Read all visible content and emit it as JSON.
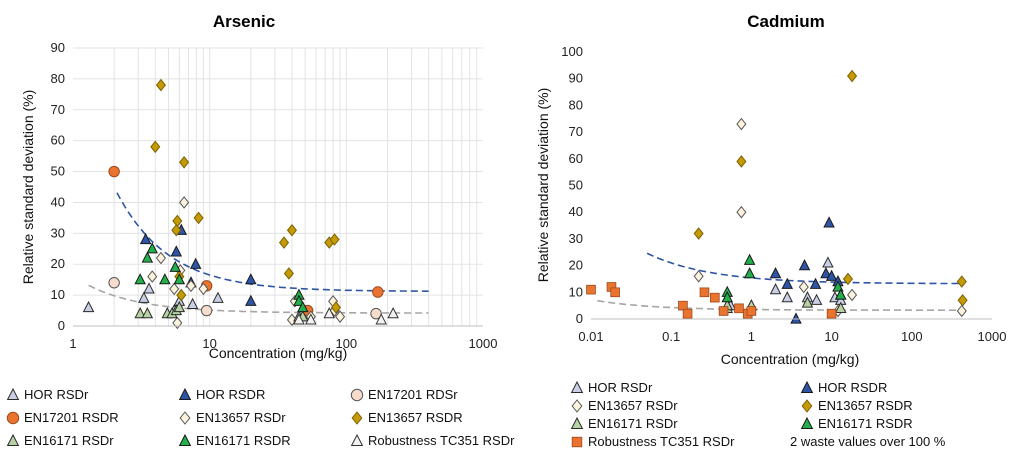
{
  "chart_data": [
    {
      "type": "scatter",
      "title": "Arsenic",
      "xlabel": "Concentration (mg/kg)",
      "ylabel": "Relative standard deviation (%)",
      "x_scale": "log",
      "xlim": [
        1,
        1000
      ],
      "ylim": [
        0,
        90
      ],
      "x_ticks": [
        "1",
        "10",
        "100",
        "1000"
      ],
      "y_ticks": [
        "0",
        "10",
        "20",
        "30",
        "40",
        "50",
        "60",
        "70",
        "80",
        "90"
      ],
      "grid": true,
      "legend_position": "bottom",
      "series": [
        {
          "name": "HOR RSDr",
          "marker": "triangle",
          "fill": "#c9d0e6",
          "stroke": "#2a2a2a",
          "points": [
            [
              1.3,
              6
            ],
            [
              3.3,
              9
            ],
            [
              3.6,
              12
            ],
            [
              5.5,
              5
            ],
            [
              6,
              8
            ],
            [
              7.5,
              7
            ],
            [
              11.5,
              9
            ]
          ]
        },
        {
          "name": "HOR RSDR",
          "marker": "triangle",
          "fill": "#2e55a5",
          "stroke": "#1a1a1a",
          "points": [
            [
              3.4,
              28
            ],
            [
              5.7,
              24
            ],
            [
              6.2,
              31
            ],
            [
              7.3,
              14
            ],
            [
              7.9,
              20
            ],
            [
              20,
              15
            ],
            [
              20,
              8
            ]
          ]
        },
        {
          "name": "EN17201 RDSr",
          "marker": "circle",
          "fill": "#f6dccd",
          "stroke": "#555",
          "points": [
            [
              2.0,
              14
            ],
            [
              9.5,
              5
            ],
            [
              52,
              5
            ],
            [
              165,
              4
            ]
          ]
        },
        {
          "name": "EN17201 RSDR",
          "marker": "circle",
          "fill": "#e8742f",
          "stroke": "#a0481c",
          "points": [
            [
              2.0,
              50
            ],
            [
              9.5,
              13
            ],
            [
              52,
              5
            ],
            [
              170,
              11
            ]
          ]
        },
        {
          "name": "EN13657 RSDr",
          "marker": "diamond",
          "fill": "#fcf3dc",
          "stroke": "#555",
          "points": [
            [
              4.4,
              22
            ],
            [
              3.8,
              16
            ],
            [
              5.5,
              12
            ],
            [
              5.8,
              1
            ],
            [
              6.5,
              40
            ],
            [
              6.1,
              18
            ],
            [
              7.3,
              13
            ],
            [
              9,
              12
            ],
            [
              40,
              2
            ],
            [
              42,
              8
            ],
            [
              55,
              3
            ],
            [
              80,
              8
            ],
            [
              82,
              5
            ],
            [
              90,
              3
            ]
          ]
        },
        {
          "name": "EN13657 RSDR",
          "marker": "diamond",
          "fill": "#c49a06",
          "stroke": "#7a6004",
          "points": [
            [
              4.4,
              78
            ],
            [
              4.0,
              58
            ],
            [
              6.5,
              53
            ],
            [
              5.8,
              34
            ],
            [
              5.7,
              31
            ],
            [
              8.3,
              35
            ],
            [
              6.0,
              16
            ],
            [
              6.2,
              10
            ],
            [
              35,
              27
            ],
            [
              40,
              31
            ],
            [
              38,
              17
            ],
            [
              75,
              27
            ],
            [
              82,
              28
            ],
            [
              84,
              6
            ]
          ]
        },
        {
          "name": "EN16171 RSDr",
          "marker": "triangle",
          "fill": "#b7d3a3",
          "stroke": "#2a2a2a",
          "points": [
            [
              3.1,
              4
            ],
            [
              3.5,
              4
            ],
            [
              4.9,
              4
            ],
            [
              5.3,
              4
            ],
            [
              5.7,
              5
            ],
            [
              6,
              6
            ],
            [
              45,
              3
            ],
            [
              48,
              3
            ]
          ]
        },
        {
          "name": "EN16171 RSDR",
          "marker": "triangle",
          "fill": "#22b04b",
          "stroke": "#1a1a1a",
          "points": [
            [
              3.1,
              15
            ],
            [
              3.5,
              22
            ],
            [
              3.8,
              25
            ],
            [
              4.7,
              15
            ],
            [
              5.6,
              19
            ],
            [
              6,
              15
            ],
            [
              45,
              10
            ],
            [
              45,
              8
            ],
            [
              48,
              6
            ]
          ]
        },
        {
          "name": "Robustness TC351 RSDr",
          "marker": "triangle",
          "fill": "#f2f2f2",
          "stroke": "#333",
          "points": [
            [
              45,
              2
            ],
            [
              55,
              2
            ],
            [
              75,
              4
            ],
            [
              180,
              2
            ],
            [
              220,
              4
            ]
          ]
        }
      ],
      "trendlines": [
        {
          "color": "#2e55a5",
          "x_start": 2.1,
          "x_end": 400,
          "a": 11.2,
          "b": 75,
          "k": 1.15
        },
        {
          "color": "#a6a6a6",
          "x_start": 1.3,
          "x_end": 400,
          "a": 4.2,
          "b": 12,
          "k": 1.1
        }
      ]
    },
    {
      "type": "scatter",
      "title": "Cadmium",
      "xlabel": "Concentration (mg/kg)",
      "ylabel": "Relative standard deviation (%)",
      "x_scale": "log",
      "xlim": [
        0.01,
        1000
      ],
      "ylim": [
        0,
        100
      ],
      "x_ticks": [
        "0.01",
        "0.1",
        "1",
        "10",
        "100",
        "1000"
      ],
      "y_ticks": [
        "0",
        "10",
        "20",
        "30",
        "40",
        "50",
        "60",
        "70",
        "80",
        "90",
        "100"
      ],
      "grid": false,
      "legend_position": "bottom",
      "series": [
        {
          "name": "HOR RSDr",
          "marker": "triangle",
          "fill": "#c9d0e6",
          "stroke": "#2a2a2a",
          "points": [
            [
              0.55,
              5
            ],
            [
              2.0,
              11
            ],
            [
              2.8,
              8
            ],
            [
              5.0,
              8
            ],
            [
              6.5,
              7
            ],
            [
              9.0,
              21
            ],
            [
              11,
              8
            ],
            [
              13,
              7
            ]
          ]
        },
        {
          "name": "HOR RSDR",
          "marker": "triangle",
          "fill": "#2e55a5",
          "stroke": "#1a1a1a",
          "points": [
            [
              2.0,
              17
            ],
            [
              2.8,
              13
            ],
            [
              3.6,
              0
            ],
            [
              4.6,
              20
            ],
            [
              6.3,
              13
            ],
            [
              8.5,
              17
            ],
            [
              9.3,
              36
            ],
            [
              10,
              16
            ],
            [
              12,
              14
            ],
            [
              13,
              9
            ]
          ]
        },
        {
          "name": "EN13657 RSDr",
          "marker": "diamond",
          "fill": "#fcf3dc",
          "stroke": "#555",
          "points": [
            [
              0.22,
              16
            ],
            [
              0.75,
              73
            ],
            [
              0.75,
              40
            ],
            [
              4.5,
              12
            ],
            [
              12,
              3
            ],
            [
              18,
              9
            ],
            [
              420,
              3
            ]
          ]
        },
        {
          "name": "EN13657 RSDR",
          "marker": "diamond",
          "fill": "#c49a06",
          "stroke": "#7a6004",
          "points": [
            [
              0.22,
              32
            ],
            [
              0.75,
              59
            ],
            [
              18,
              91
            ],
            [
              16,
              15
            ],
            [
              420,
              14
            ],
            [
              430,
              7
            ]
          ]
        },
        {
          "name": "EN16171 RSDr",
          "marker": "triangle",
          "fill": "#b7d3a3",
          "stroke": "#2a2a2a",
          "points": [
            [
              0.5,
              4
            ],
            [
              0.5,
              5
            ],
            [
              1.0,
              5
            ],
            [
              5,
              6
            ],
            [
              13,
              4
            ]
          ]
        },
        {
          "name": "EN16171 RSDR",
          "marker": "triangle",
          "fill": "#22b04b",
          "stroke": "#1a1a1a",
          "points": [
            [
              0.5,
              10
            ],
            [
              0.5,
              8
            ],
            [
              0.95,
              17
            ],
            [
              0.95,
              22
            ],
            [
              12,
              12
            ],
            [
              13,
              9
            ]
          ]
        },
        {
          "name": "Robustness TC351 RSDr",
          "marker": "square",
          "fill": "#e8742f",
          "stroke": "#a0481c",
          "points": [
            [
              0.01,
              11
            ],
            [
              0.018,
              12
            ],
            [
              0.02,
              10
            ],
            [
              0.14,
              5
            ],
            [
              0.16,
              2
            ],
            [
              0.26,
              10
            ],
            [
              0.35,
              8
            ],
            [
              0.45,
              3
            ],
            [
              0.7,
              4
            ],
            [
              0.9,
              2
            ],
            [
              1.0,
              3
            ],
            [
              10,
              2
            ]
          ]
        }
      ],
      "trendlines": [
        {
          "color": "#2e55a5",
          "x_start": 0.05,
          "x_end": 450,
          "a": 13.2,
          "b": 2.2,
          "k": 0.55
        },
        {
          "color": "#a6a6a6",
          "x_start": 0.012,
          "x_end": 450,
          "a": 3.3,
          "b": 0.25,
          "k": 0.6
        }
      ],
      "note": "2 waste values over 100 %"
    }
  ],
  "legends": {
    "arsenic": [
      {
        "label": "HOR RSDr",
        "marker": "triangle",
        "fill": "#c9d0e6",
        "stroke": "#2a2a2a"
      },
      {
        "label": "HOR RSDR",
        "marker": "triangle",
        "fill": "#2e55a5",
        "stroke": "#1a1a1a"
      },
      {
        "label": "EN17201 RDSr",
        "marker": "circle",
        "fill": "#f6dccd",
        "stroke": "#555"
      },
      {
        "label": "EN17201 RSDR",
        "marker": "circle",
        "fill": "#e8742f",
        "stroke": "#a0481c"
      },
      {
        "label": "EN13657 RSDr",
        "marker": "diamond",
        "fill": "#fcf3dc",
        "stroke": "#555"
      },
      {
        "label": "EN13657 RSDR",
        "marker": "diamond",
        "fill": "#c49a06",
        "stroke": "#7a6004"
      },
      {
        "label": "EN16171 RSDr",
        "marker": "triangle",
        "fill": "#b7d3a3",
        "stroke": "#2a2a2a"
      },
      {
        "label": "EN16171 RSDR",
        "marker": "triangle",
        "fill": "#22b04b",
        "stroke": "#1a1a1a"
      },
      {
        "label": "Robustness TC351 RSDr",
        "marker": "triangle",
        "fill": "#f2f2f2",
        "stroke": "#333"
      }
    ],
    "cadmium": [
      {
        "label": "HOR RSDr",
        "marker": "triangle",
        "fill": "#c9d0e6",
        "stroke": "#2a2a2a"
      },
      {
        "label": "HOR RSDR",
        "marker": "triangle",
        "fill": "#2e55a5",
        "stroke": "#1a1a1a"
      },
      {
        "label": "EN13657 RSDr",
        "marker": "diamond",
        "fill": "#fcf3dc",
        "stroke": "#555"
      },
      {
        "label": "EN13657 RSDR",
        "marker": "diamond",
        "fill": "#c49a06",
        "stroke": "#7a6004"
      },
      {
        "label": "EN16171 RSDr",
        "marker": "triangle",
        "fill": "#b7d3a3",
        "stroke": "#2a2a2a"
      },
      {
        "label": "EN16171 RSDR",
        "marker": "triangle",
        "fill": "#22b04b",
        "stroke": "#1a1a1a"
      },
      {
        "label": "Robustness TC351 RSDr",
        "marker": "square",
        "fill": "#e8742f",
        "stroke": "#a0481c"
      }
    ]
  }
}
